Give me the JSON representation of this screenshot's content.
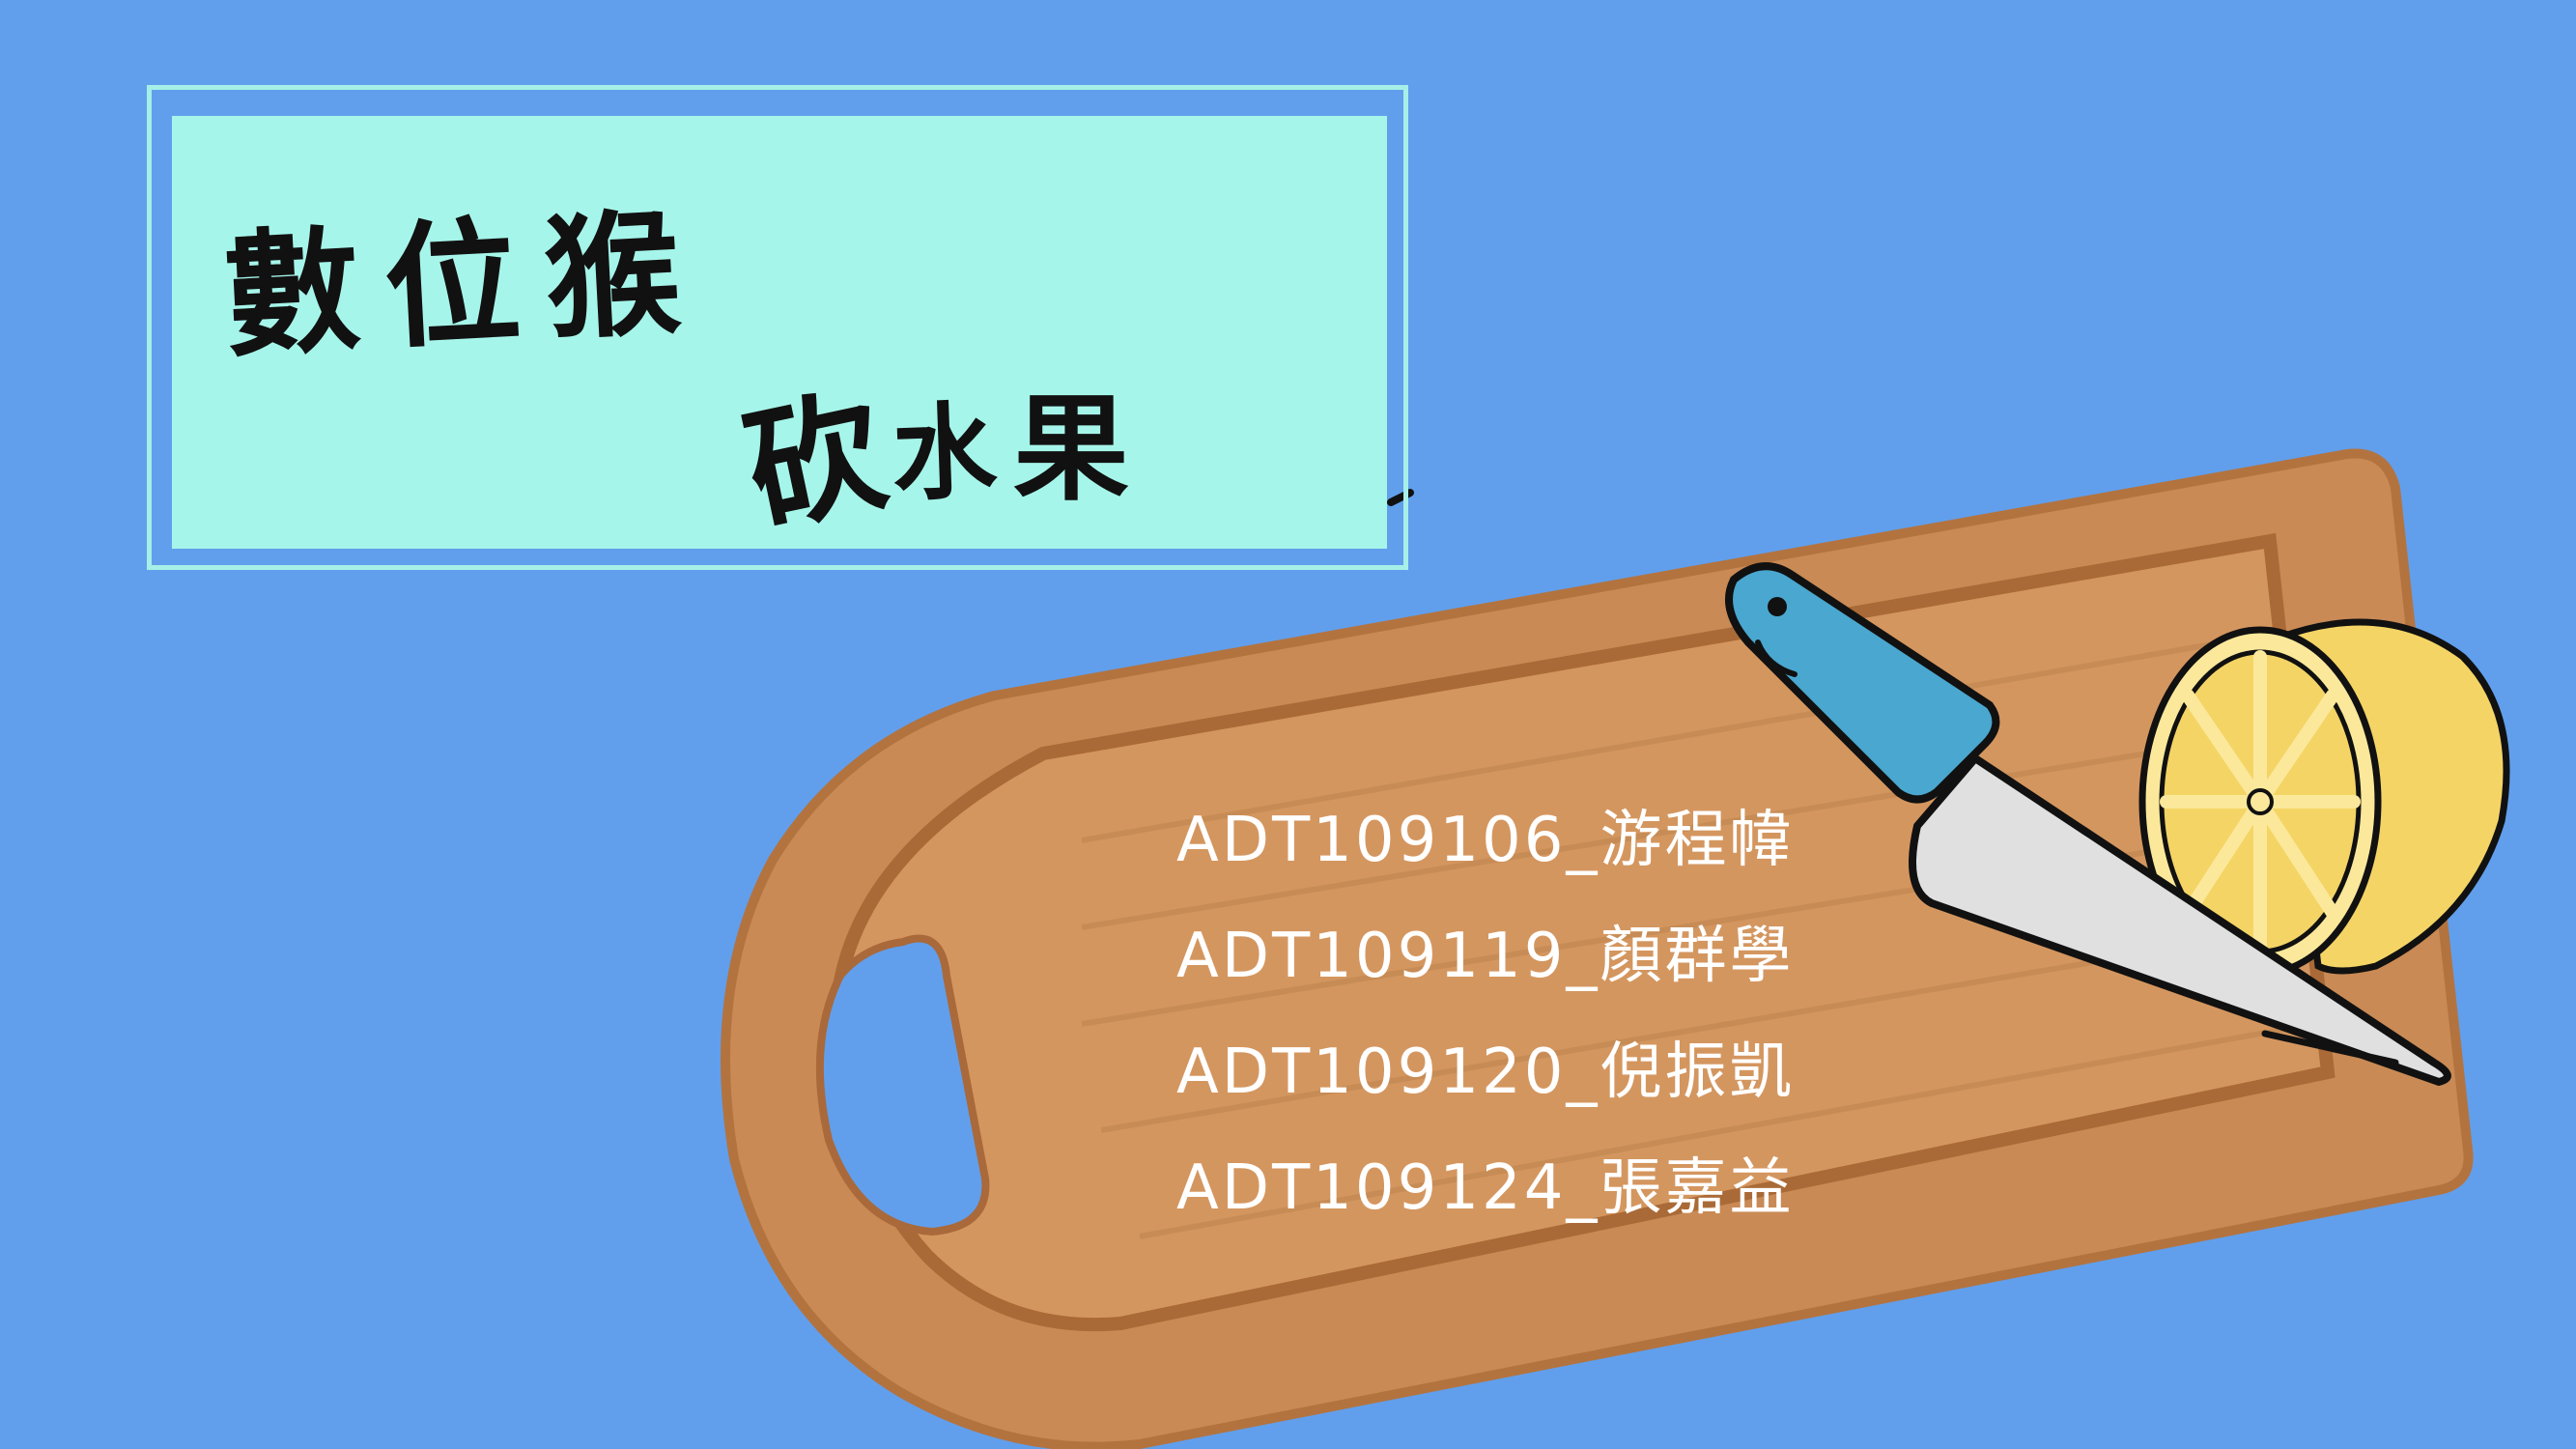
{
  "title": {
    "line1": "數位猴",
    "line2_chars": [
      "砍",
      "",
      "水",
      "果"
    ]
  },
  "members": [
    "ADT109106_游程幃",
    "ADT109119_顏群學",
    "ADT109120_倪振凱",
    "ADT109124_張嘉益"
  ],
  "colors": {
    "background": "#619fec",
    "title_box": "#a6f5ea",
    "board": "#c98a55",
    "knife_handle": "#4aa7cf",
    "lemon": "#f4d465"
  },
  "icons": [
    "cutting-board-icon",
    "knife-icon",
    "lemon-half-icon"
  ]
}
